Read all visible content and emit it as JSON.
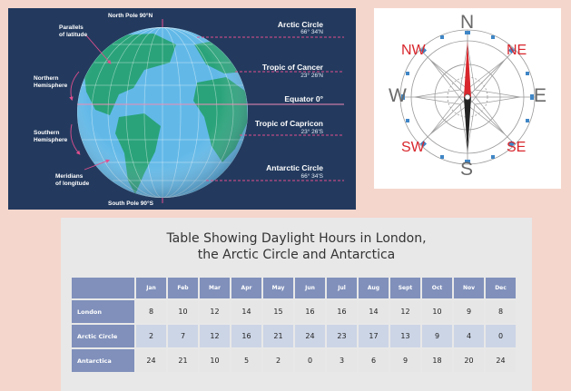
{
  "globe": {
    "north_pole": "North Pole 90°N",
    "south_pole": "South Pole 90°S",
    "parallels": [
      "Parallels",
      "of latitude"
    ],
    "northern": [
      "Northern",
      "Hemisphere"
    ],
    "southern": [
      "Southern",
      "Hemisphere"
    ],
    "meridians": [
      "Meridians",
      "of longitude"
    ],
    "lines": [
      {
        "name": "Arctic Circle",
        "degree": "66° 34'N"
      },
      {
        "name": "Tropic of Cancer",
        "degree": "23° 26'N"
      },
      {
        "name": "Equator 0°",
        "degree": ""
      },
      {
        "name": "Tropic of Capricon",
        "degree": "23° 26'S"
      },
      {
        "name": "Antarctic Circle",
        "degree": "66° 34'S"
      }
    ]
  },
  "compass": {
    "n": "N",
    "s": "S",
    "e": "E",
    "w": "W",
    "ne": "NE",
    "nw": "NW",
    "se": "SE",
    "sw": "SW"
  },
  "table": {
    "title_line1": "Table Showing Daylight Hours in London,",
    "title_line2": "the Arctic Circle and Antarctica",
    "months": [
      "Jan",
      "Feb",
      "Mar",
      "Apr",
      "May",
      "Jun",
      "Jul",
      "Aug",
      "Sept",
      "Oct",
      "Nov",
      "Dec"
    ],
    "rows": [
      {
        "place": "London",
        "values": [
          "8",
          "10",
          "12",
          "14",
          "15",
          "16",
          "16",
          "14",
          "12",
          "10",
          "9",
          "8"
        ]
      },
      {
        "place": "Arctic Circle",
        "values": [
          "2",
          "7",
          "12",
          "16",
          "21",
          "24",
          "23",
          "17",
          "13",
          "9",
          "4",
          "0"
        ]
      },
      {
        "place": "Antarctica",
        "values": [
          "24",
          "21",
          "10",
          "5",
          "2",
          "0",
          "3",
          "6",
          "9",
          "18",
          "20",
          "24"
        ]
      }
    ]
  },
  "colors": {
    "globe_bg": "#233a5e",
    "ocean": "#62b9e8",
    "land": "#2aa37a",
    "guide_lines": "#e24f8f",
    "compass_red": "#d8262c",
    "table_header": "#8090bb"
  }
}
